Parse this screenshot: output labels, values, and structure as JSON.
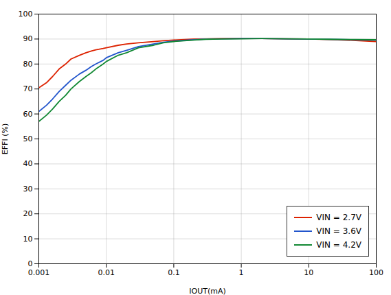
{
  "chart_data": {
    "type": "line",
    "xlabel": "IOUT(mA)",
    "ylabel": "EFFI (%)",
    "log": "x",
    "xlim": [
      0.001,
      100
    ],
    "ylim": [
      0,
      100
    ],
    "xticks": [
      0.001,
      0.01,
      0.1,
      1,
      10,
      100
    ],
    "yticks": [
      0,
      10,
      20,
      30,
      40,
      50,
      60,
      70,
      80,
      90,
      100
    ],
    "grid": true,
    "legend": "lower right",
    "x": [
      0.001,
      0.0013,
      0.0016,
      0.002,
      0.0025,
      0.003,
      0.004,
      0.005,
      0.006,
      0.007,
      0.009,
      0.01,
      0.015,
      0.02,
      0.03,
      0.05,
      0.07,
      0.1,
      0.2,
      0.3,
      0.5,
      1.0,
      2.0,
      5.0,
      10.0,
      20.0,
      50.0,
      100.0
    ],
    "series": [
      {
        "name": "VIN = 2.7V",
        "color": "#dd2200",
        "values": [
          70.5,
          72.5,
          75.0,
          78.0,
          80.0,
          82.0,
          83.5,
          84.5,
          85.2,
          85.7,
          86.2,
          86.5,
          87.5,
          88.0,
          88.5,
          89.0,
          89.3,
          89.6,
          90.0,
          90.1,
          90.2,
          90.3,
          90.2,
          90.1,
          90.0,
          89.8,
          89.4,
          89.0
        ]
      },
      {
        "name": "VIN = 3.6V",
        "color": "#2255cc",
        "values": [
          61.0,
          63.5,
          66.0,
          69.0,
          71.5,
          73.5,
          76.0,
          77.5,
          79.0,
          80.0,
          81.5,
          82.5,
          84.5,
          85.5,
          87.0,
          88.0,
          88.7,
          89.2,
          89.7,
          90.0,
          90.1,
          90.2,
          90.2,
          90.1,
          90.0,
          89.9,
          89.7,
          89.5
        ]
      },
      {
        "name": "VIN = 4.2V",
        "color": "#118833",
        "values": [
          57.0,
          59.5,
          62.0,
          65.0,
          67.5,
          70.0,
          73.0,
          75.0,
          76.5,
          78.0,
          80.0,
          81.0,
          83.5,
          84.5,
          86.5,
          87.5,
          88.5,
          89.0,
          89.6,
          89.9,
          90.0,
          90.1,
          90.2,
          90.1,
          90.0,
          89.9,
          89.8,
          89.7
        ]
      }
    ]
  }
}
